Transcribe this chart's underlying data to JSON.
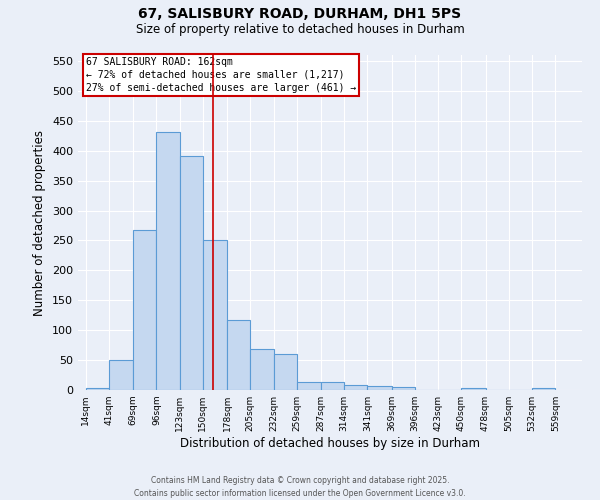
{
  "title_line1": "67, SALISBURY ROAD, DURHAM, DH1 5PS",
  "title_line2": "Size of property relative to detached houses in Durham",
  "xlabel": "Distribution of detached houses by size in Durham",
  "ylabel": "Number of detached properties",
  "bar_left_edges": [
    14,
    41,
    69,
    96,
    123,
    150,
    178,
    205,
    232,
    259,
    287,
    314,
    341,
    369,
    396,
    423,
    450,
    478,
    505,
    532
  ],
  "bar_heights": [
    3,
    50,
    267,
    432,
    391,
    250,
    117,
    68,
    60,
    13,
    13,
    8,
    7,
    5,
    0,
    0,
    3,
    0,
    0,
    3
  ],
  "bar_widths": [
    27,
    28,
    27,
    27,
    27,
    28,
    27,
    27,
    27,
    28,
    27,
    27,
    28,
    27,
    27,
    27,
    28,
    27,
    27,
    27
  ],
  "bar_color": "#c5d8f0",
  "bar_edge_color": "#5b9bd5",
  "bar_edge_width": 0.8,
  "property_line_x": 162,
  "property_line_color": "#cc0000",
  "annotation_text_line1": "67 SALISBURY ROAD: 162sqm",
  "annotation_text_line2": "← 72% of detached houses are smaller (1,217)",
  "annotation_text_line3": "27% of semi-detached houses are larger (461) →",
  "annotation_box_color": "#cc0000",
  "annotation_bg": "#ffffff",
  "tick_labels": [
    "14sqm",
    "41sqm",
    "69sqm",
    "96sqm",
    "123sqm",
    "150sqm",
    "178sqm",
    "205sqm",
    "232sqm",
    "259sqm",
    "287sqm",
    "314sqm",
    "341sqm",
    "369sqm",
    "396sqm",
    "423sqm",
    "450sqm",
    "478sqm",
    "505sqm",
    "532sqm",
    "559sqm"
  ],
  "tick_positions": [
    14,
    41,
    69,
    96,
    123,
    150,
    178,
    205,
    232,
    259,
    287,
    314,
    341,
    369,
    396,
    423,
    450,
    478,
    505,
    532,
    559
  ],
  "ylim": [
    0,
    560
  ],
  "xlim": [
    5,
    590
  ],
  "yticks": [
    0,
    50,
    100,
    150,
    200,
    250,
    300,
    350,
    400,
    450,
    500,
    550
  ],
  "bg_color": "#eaeff8",
  "plot_bg_color": "#eaeff8",
  "grid_color": "#ffffff",
  "footer_line1": "Contains HM Land Registry data © Crown copyright and database right 2025.",
  "footer_line2": "Contains public sector information licensed under the Open Government Licence v3.0."
}
